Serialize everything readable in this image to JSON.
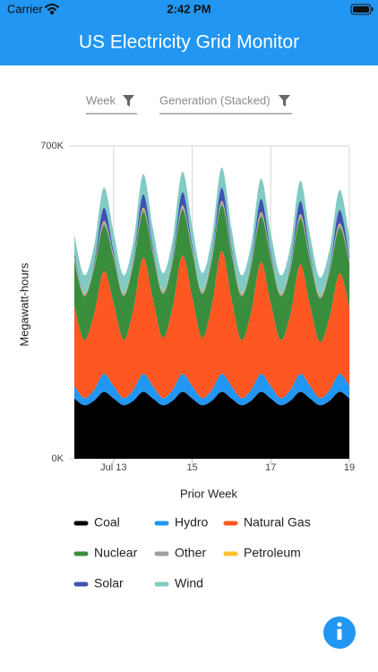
{
  "status_bar": {
    "carrier": "Carrier",
    "time": "2:42 PM"
  },
  "app_bar": {
    "title": "US Electricity Grid Monitor"
  },
  "filters": [
    {
      "label": "Week"
    },
    {
      "label": "Generation (Stacked)"
    }
  ],
  "chart_data": {
    "type": "area",
    "stacked": true,
    "y_label": "Megawatt-hours",
    "x_label": "Prior Week",
    "x": [
      12,
      12.25,
      12.5,
      12.75,
      13,
      13.25,
      13.5,
      13.75,
      14,
      14.25,
      14.5,
      14.75,
      15,
      15.25,
      15.5,
      15.75,
      16,
      16.25,
      16.5,
      16.75,
      17,
      17.25,
      17.5,
      17.75,
      18,
      18.25,
      18.5,
      18.75,
      19
    ],
    "xlim": [
      12,
      19
    ],
    "xticks": [
      {
        "value": 13,
        "label": "Jul 13"
      },
      15,
      17,
      19
    ],
    "ylim": [
      0,
      700000
    ],
    "yticks": [
      {
        "value": 0,
        "label": "0K"
      },
      {
        "value": 700000,
        "label": "700K"
      }
    ],
    "grid": true,
    "series": [
      {
        "name": "Coal",
        "color": "#000000",
        "values": [
          135000,
          120000,
          130000,
          150000,
          135000,
          120000,
          130000,
          150000,
          135000,
          120000,
          130000,
          150000,
          135000,
          120000,
          130000,
          150000,
          135000,
          120000,
          130000,
          150000,
          135000,
          120000,
          130000,
          150000,
          135000,
          120000,
          130000,
          150000,
          135000
        ]
      },
      {
        "name": "Hydro",
        "color": "#2196f3",
        "values": [
          28000,
          16000,
          24000,
          40000,
          28000,
          16000,
          24000,
          40000,
          28000,
          16000,
          24000,
          40000,
          28000,
          16000,
          24000,
          40000,
          28000,
          16000,
          24000,
          40000,
          28000,
          16000,
          24000,
          40000,
          28000,
          16000,
          24000,
          40000,
          28000
        ]
      },
      {
        "name": "Natural Gas",
        "color": "#ff5722",
        "values": [
          180000,
          130000,
          170000,
          230000,
          185000,
          130000,
          180000,
          260000,
          195000,
          135000,
          185000,
          265000,
          200000,
          135000,
          190000,
          275000,
          195000,
          130000,
          175000,
          250000,
          185000,
          130000,
          170000,
          245000,
          180000,
          125000,
          165000,
          225000,
          175000
        ]
      },
      {
        "name": "Nuclear",
        "color": "#388e3c",
        "values": [
          100000,
          98000,
          100000,
          102000,
          100000,
          98000,
          100000,
          102000,
          100000,
          98000,
          100000,
          102000,
          100000,
          98000,
          100000,
          102000,
          100000,
          98000,
          100000,
          102000,
          100000,
          98000,
          100000,
          102000,
          100000,
          98000,
          100000,
          102000,
          100000
        ]
      },
      {
        "name": "Other",
        "color": "#9e9e9e",
        "values": [
          6000,
          5000,
          6000,
          7000,
          6000,
          5000,
          6000,
          7000,
          6000,
          5000,
          6000,
          7000,
          6000,
          5000,
          6000,
          7000,
          6000,
          5000,
          6000,
          7000,
          6000,
          5000,
          6000,
          7000,
          6000,
          5000,
          6000,
          7000,
          6000
        ]
      },
      {
        "name": "Petroleum",
        "color": "#fbc02d",
        "values": [
          2000,
          2000,
          2000,
          3000,
          2000,
          2000,
          2000,
          3000,
          2000,
          2000,
          2000,
          3000,
          2000,
          2000,
          2000,
          3000,
          2000,
          2000,
          2000,
          3000,
          2000,
          2000,
          2000,
          3000,
          2000,
          2000,
          2000,
          3000,
          2000
        ]
      },
      {
        "name": "Solar",
        "color": "#3f51b5",
        "values": [
          8000,
          0,
          5000,
          30000,
          8000,
          0,
          5000,
          30000,
          8000,
          0,
          5000,
          30000,
          8000,
          0,
          5000,
          30000,
          8000,
          0,
          5000,
          30000,
          8000,
          0,
          5000,
          30000,
          8000,
          0,
          5000,
          30000,
          8000
        ]
      },
      {
        "name": "Wind",
        "color": "#80cbc4",
        "values": [
          42000,
          40000,
          38000,
          45000,
          42000,
          40000,
          38000,
          45000,
          42000,
          40000,
          38000,
          45000,
          42000,
          40000,
          38000,
          45000,
          42000,
          40000,
          38000,
          45000,
          42000,
          40000,
          38000,
          45000,
          42000,
          40000,
          38000,
          45000,
          42000
        ]
      }
    ]
  }
}
